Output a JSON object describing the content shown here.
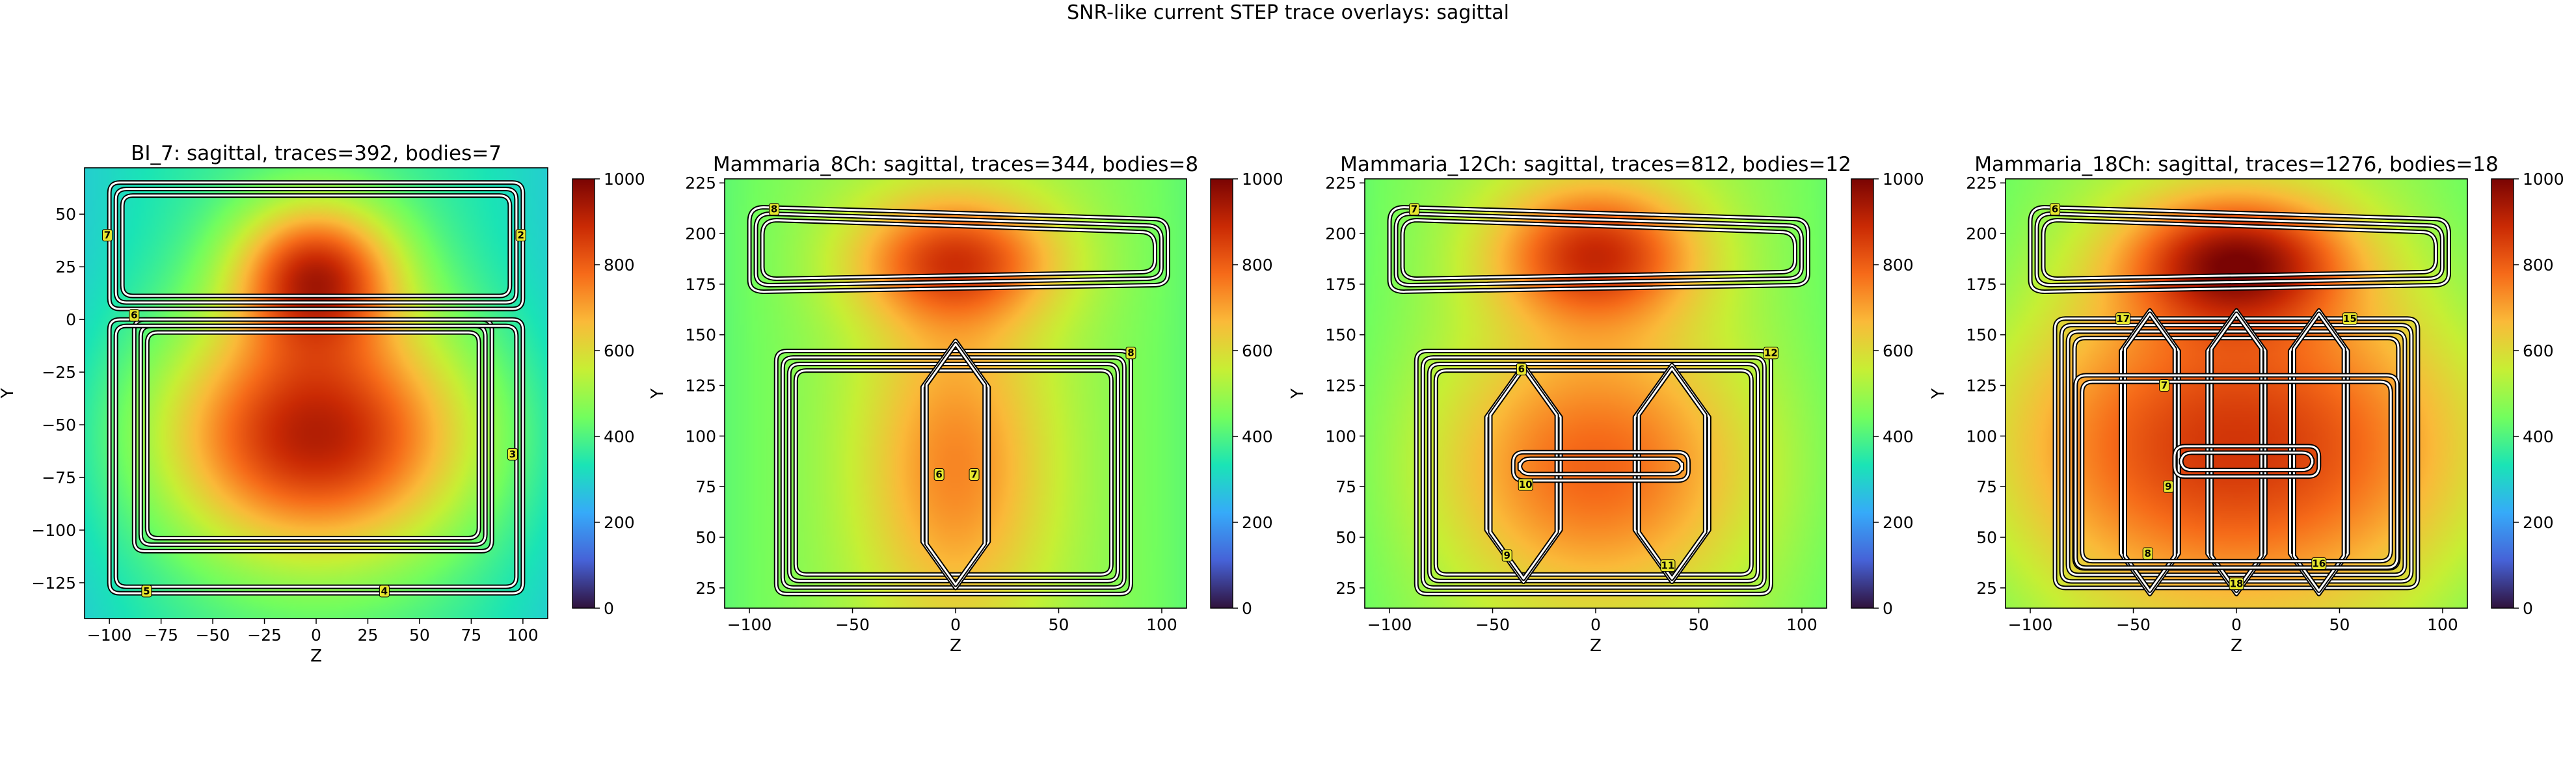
{
  "figure": {
    "suptitle": "SNR-like current STEP trace overlays: sagittal"
  },
  "colors": {
    "colormap": [
      "#30123b",
      "#4662d7",
      "#36aaf9",
      "#1ae4b6",
      "#72fe5e",
      "#c7ef34",
      "#faba39",
      "#f66b19",
      "#ca2a04",
      "#7a0403"
    ],
    "trace_outline": "#000000",
    "trace_fill": "#ffffff",
    "marker_fill": "#e6e62e"
  },
  "chart_data": [
    {
      "type": "heatmap",
      "title": "BI_7: sagittal, traces=392, bodies=7",
      "xlabel": "Z",
      "ylabel": "Y",
      "xlim": [
        -112,
        112
      ],
      "ylim": [
        -142,
        72
      ],
      "xticks": [
        -100,
        -75,
        -50,
        -25,
        0,
        25,
        50,
        75,
        100
      ],
      "xtick_labels": [
        "−100",
        "−75",
        "−50",
        "−25",
        "0",
        "25",
        "50",
        "75",
        "100"
      ],
      "yticks": [
        50,
        25,
        0,
        -25,
        -50,
        -75,
        -100,
        -125
      ],
      "ytick_labels": [
        "50",
        "25",
        "0",
        "−25",
        "−50",
        "−75",
        "−100",
        "−125"
      ],
      "colorbar": {
        "range": [
          0,
          1000
        ],
        "ticks": [
          0,
          200,
          400,
          600,
          800,
          1000
        ],
        "tick_labels": [
          "0",
          "200",
          "400",
          "600",
          "800",
          "1000"
        ]
      },
      "field": {
        "base": 380,
        "blobs": [
          {
            "z": 0,
            "y": 22,
            "sz": 28,
            "sy": 24,
            "amp": 470
          },
          {
            "z": 0,
            "y": -55,
            "sz": 55,
            "sy": 40,
            "amp": 540
          }
        ]
      },
      "coils": [
        {
          "type": "rect",
          "z1": -100,
          "y1": 5,
          "z2": 100,
          "y2": 65,
          "n": 3
        },
        {
          "type": "rect",
          "z1": -88,
          "y1": -110,
          "z2": 85,
          "y2": 0,
          "n": 3
        },
        {
          "type": "rect",
          "z1": -100,
          "y1": -130,
          "z2": 100,
          "y2": 0,
          "n": 2
        }
      ],
      "markers": [
        {
          "label": "7",
          "z": -101,
          "y": 40
        },
        {
          "label": "2",
          "z": 99,
          "y": 40
        },
        {
          "label": "6",
          "z": -88,
          "y": 2
        },
        {
          "label": "3",
          "z": 95,
          "y": -64
        },
        {
          "label": "5",
          "z": -82,
          "y": -129
        },
        {
          "label": "4",
          "z": 33,
          "y": -129
        }
      ]
    },
    {
      "type": "heatmap",
      "title": "Mammaria_8Ch: sagittal, traces=344, bodies=8",
      "xlabel": "Z",
      "ylabel": "Y",
      "xlim": [
        -112,
        112
      ],
      "ylim": [
        15,
        227
      ],
      "xticks": [
        -100,
        -50,
        0,
        50,
        100
      ],
      "xtick_labels": [
        "−100",
        "−50",
        "0",
        "50",
        "100"
      ],
      "yticks": [
        225,
        200,
        175,
        150,
        125,
        100,
        75,
        50,
        25
      ],
      "ytick_labels": [
        "225",
        "200",
        "175",
        "150",
        "125",
        "100",
        "75",
        "50",
        "25"
      ],
      "colorbar": {
        "range": [
          0,
          1000
        ],
        "ticks": [
          0,
          200,
          400,
          600,
          800,
          1000
        ],
        "tick_labels": [
          "0",
          "200",
          "400",
          "600",
          "800",
          "1000"
        ]
      },
      "field": {
        "base": 510,
        "blobs": [
          {
            "z": 0,
            "y": 187,
            "sz": 35,
            "sy": 22,
            "amp": 330
          },
          {
            "z": 0,
            "y": 85,
            "sz": 32,
            "sy": 55,
            "amp": 230
          }
        ]
      },
      "coils": [
        {
          "type": "loop",
          "z1": -100,
          "y1": 170,
          "z2": 103,
          "y2": 213,
          "n": 3,
          "skew": 18
        },
        {
          "type": "rect",
          "z1": -87,
          "y1": 22,
          "z2": 85,
          "y2": 142,
          "n": 4
        },
        {
          "type": "hex",
          "zc": 0,
          "y1": 25,
          "y2": 147,
          "w": 16,
          "n": 2
        }
      ],
      "markers": [
        {
          "label": "8",
          "z": -88,
          "y": 212
        },
        {
          "label": "8",
          "z": 85,
          "y": 141
        },
        {
          "label": "6",
          "z": -8,
          "y": 81
        },
        {
          "label": "7",
          "z": 9,
          "y": 81
        }
      ]
    },
    {
      "type": "heatmap",
      "title": "Mammaria_12Ch: sagittal, traces=812, bodies=12",
      "xlabel": "Z",
      "ylabel": "Y",
      "xlim": [
        -112,
        112
      ],
      "ylim": [
        15,
        227
      ],
      "xticks": [
        -100,
        -50,
        0,
        50,
        100
      ],
      "xtick_labels": [
        "−100",
        "−50",
        "0",
        "50",
        "100"
      ],
      "yticks": [
        225,
        200,
        175,
        150,
        125,
        100,
        75,
        50,
        25
      ],
      "ytick_labels": [
        "225",
        "200",
        "175",
        "150",
        "125",
        "100",
        "75",
        "50",
        "25"
      ],
      "colorbar": {
        "range": [
          0,
          1000
        ],
        "ticks": [
          0,
          200,
          400,
          600,
          800,
          1000
        ],
        "tick_labels": [
          "0",
          "200",
          "400",
          "600",
          "800",
          "1000"
        ]
      },
      "field": {
        "base": 520,
        "blobs": [
          {
            "z": 0,
            "y": 190,
            "sz": 35,
            "sy": 24,
            "amp": 360
          },
          {
            "z": 0,
            "y": 85,
            "sz": 55,
            "sy": 45,
            "amp": 270
          }
        ]
      },
      "coils": [
        {
          "type": "loop",
          "z1": -100,
          "y1": 170,
          "z2": 103,
          "y2": 213,
          "n": 3,
          "skew": 18
        },
        {
          "type": "rect",
          "z1": -87,
          "y1": 22,
          "z2": 85,
          "y2": 142,
          "n": 4
        },
        {
          "type": "hex",
          "zc": -35,
          "y1": 28,
          "y2": 135,
          "w": 18,
          "n": 2
        },
        {
          "type": "hex",
          "zc": 37,
          "y1": 28,
          "y2": 135,
          "w": 18,
          "n": 2
        },
        {
          "type": "rect",
          "z1": -40,
          "y1": 78,
          "z2": 45,
          "y2": 92,
          "n": 2
        }
      ],
      "markers": [
        {
          "label": "7",
          "z": -88,
          "y": 212
        },
        {
          "label": "12",
          "z": 85,
          "y": 141
        },
        {
          "label": "6",
          "z": -36,
          "y": 133
        },
        {
          "label": "10",
          "z": -34,
          "y": 76
        },
        {
          "label": "9",
          "z": -43,
          "y": 41
        },
        {
          "label": "11",
          "z": 35,
          "y": 36
        }
      ]
    },
    {
      "type": "heatmap",
      "title": "Mammaria_18Ch: sagittal, traces=1276, bodies=18",
      "xlabel": "Z",
      "ylabel": "Y",
      "xlim": [
        -112,
        112
      ],
      "ylim": [
        15,
        227
      ],
      "xticks": [
        -100,
        -50,
        0,
        50,
        100
      ],
      "xtick_labels": [
        "−100",
        "−50",
        "0",
        "50",
        "100"
      ],
      "yticks": [
        225,
        200,
        175,
        150,
        125,
        100,
        75,
        50,
        25
      ],
      "ytick_labels": [
        "225",
        "200",
        "175",
        "150",
        "125",
        "100",
        "75",
        "50",
        "25"
      ],
      "colorbar": {
        "range": [
          0,
          1000
        ],
        "ticks": [
          0,
          200,
          400,
          600,
          800,
          1000
        ],
        "tick_labels": [
          "0",
          "200",
          "400",
          "600",
          "800",
          "1000"
        ]
      },
      "field": {
        "base": 520,
        "blobs": [
          {
            "z": 0,
            "y": 187,
            "sz": 38,
            "sy": 22,
            "amp": 400
          },
          {
            "z": 0,
            "y": 95,
            "sz": 95,
            "sy": 55,
            "amp": 350
          }
        ]
      },
      "coils": [
        {
          "type": "loop",
          "z1": -100,
          "y1": 170,
          "z2": 103,
          "y2": 213,
          "n": 3,
          "skew": 18
        },
        {
          "type": "rect",
          "z1": -88,
          "y1": 25,
          "z2": 88,
          "y2": 158,
          "n": 4
        },
        {
          "type": "hex",
          "zc": -42,
          "y1": 22,
          "y2": 162,
          "w": 14,
          "n": 2
        },
        {
          "type": "hex",
          "zc": 0,
          "y1": 22,
          "y2": 162,
          "w": 14,
          "n": 2
        },
        {
          "type": "hex",
          "zc": 40,
          "y1": 22,
          "y2": 162,
          "w": 14,
          "n": 2
        },
        {
          "type": "rect",
          "z1": -30,
          "y1": 80,
          "z2": 40,
          "y2": 95,
          "n": 2
        },
        {
          "type": "rect",
          "z1": -78,
          "y1": 35,
          "z2": 78,
          "y2": 130,
          "n": 2
        }
      ],
      "markers": [
        {
          "label": "6",
          "z": -88,
          "y": 212
        },
        {
          "label": "17",
          "z": -55,
          "y": 158
        },
        {
          "label": "15",
          "z": 55,
          "y": 158
        },
        {
          "label": "7",
          "z": -35,
          "y": 125
        },
        {
          "label": "9",
          "z": -33,
          "y": 75
        },
        {
          "label": "8",
          "z": -43,
          "y": 42
        },
        {
          "label": "16",
          "z": 40,
          "y": 37
        },
        {
          "label": "18",
          "z": 0,
          "y": 27
        }
      ]
    }
  ]
}
